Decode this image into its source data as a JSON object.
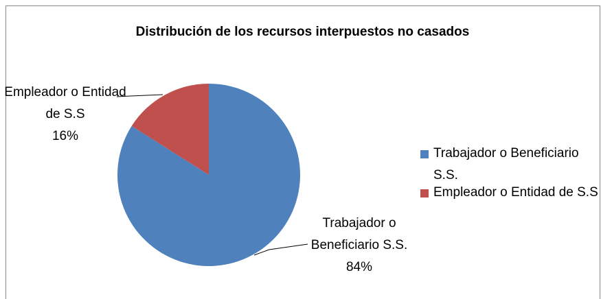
{
  "chart_data": {
    "type": "pie",
    "title": "Distribución de los recursos interpuestos no casados",
    "categories": [
      "Trabajador o Beneficiario S.S.",
      "Empleador o Entidad de S.S"
    ],
    "values": [
      84,
      16
    ],
    "value_labels": [
      "84%",
      "16%"
    ],
    "colors": [
      "#4f81bd",
      "#c0504d"
    ],
    "legend": "right"
  }
}
